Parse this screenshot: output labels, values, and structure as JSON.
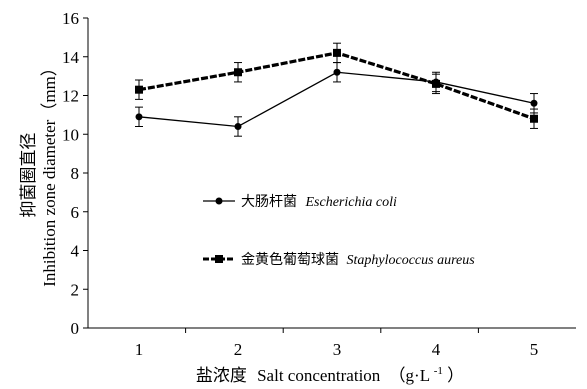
{
  "chart_data": {
    "type": "line",
    "title": "",
    "xlabel": {
      "zh": "盐浓度",
      "en": "Salt concentration",
      "unit_open": "（g·L",
      "unit_sup": "-1",
      "unit_close": "）"
    },
    "ylabel": {
      "zh": "抑菌圈直径",
      "en": "Inhibition zone diameter（mm）"
    },
    "x": [
      1,
      2,
      3,
      4,
      5
    ],
    "x_tick_labels": [
      "1",
      "2",
      "3",
      "4",
      "5"
    ],
    "ylim": [
      0,
      16
    ],
    "y_ticks": [
      0,
      2,
      4,
      6,
      8,
      10,
      12,
      14,
      16
    ],
    "y_tick_labels": [
      "0",
      "2",
      "4",
      "6",
      "8",
      "10",
      "12",
      "14",
      "16"
    ],
    "grid": false,
    "legend_position": "center-left",
    "series": [
      {
        "name_zh": "大肠杆菌",
        "name_en": "Escherichia coli",
        "marker": "circle",
        "line_style": "solid-thin",
        "color": "#000000",
        "values": [
          10.9,
          10.4,
          13.2,
          12.7,
          11.6
        ],
        "errors": [
          0.5,
          0.5,
          0.5,
          0.5,
          0.5
        ]
      },
      {
        "name_zh": "金黄色葡萄球菌",
        "name_en": "Staphylococcus aureus",
        "marker": "square",
        "line_style": "dashed-thick",
        "color": "#000000",
        "values": [
          12.3,
          13.2,
          14.2,
          12.6,
          10.8
        ],
        "errors": [
          0.5,
          0.5,
          0.5,
          0.5,
          0.5
        ]
      }
    ]
  }
}
